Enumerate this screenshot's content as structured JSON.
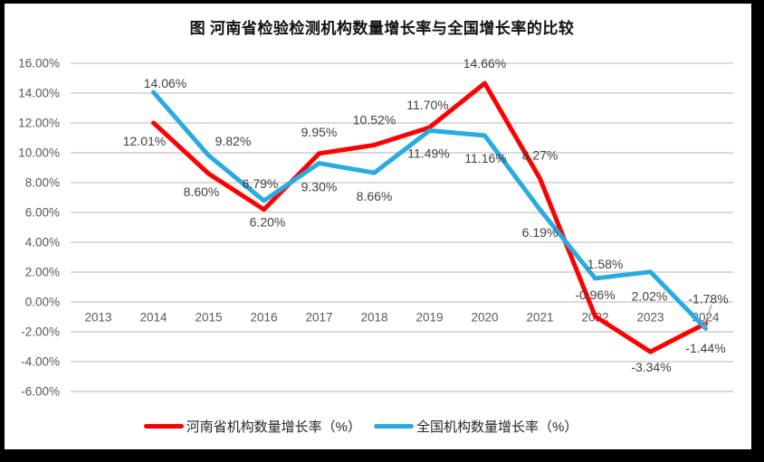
{
  "title": "图  河南省检验检测机构数量增长率与全国增长率的比较",
  "chart_data": {
    "type": "line",
    "title": "图  河南省检验检测机构数量增长率与全国增长率的比较",
    "categories": [
      "2013",
      "2014",
      "2015",
      "2016",
      "2017",
      "2018",
      "2019",
      "2020",
      "2021",
      "2022",
      "2023",
      "2024"
    ],
    "series": [
      {
        "name": "河南省机构数量增长率（%）",
        "color": "#FF0000",
        "values": [
          null,
          12.01,
          8.6,
          6.2,
          9.95,
          10.52,
          11.7,
          14.66,
          8.27,
          -0.96,
          -3.34,
          -1.44
        ],
        "labels": [
          "",
          "12.01%",
          "8.60%",
          "6.20%",
          "9.95%",
          "10.52%",
          "11.70%",
          "14.66%",
          "8.27%",
          "-0.96%",
          "-3.34%",
          "-1.44%"
        ]
      },
      {
        "name": "全国机构数量增长率（%）",
        "color": "#29ABE2",
        "values": [
          null,
          14.06,
          9.82,
          6.79,
          9.3,
          8.66,
          11.49,
          11.16,
          6.19,
          1.58,
          2.02,
          -1.78
        ],
        "labels": [
          "",
          "14.06%",
          "9.82%",
          "6.79%",
          "9.30%",
          "8.66%",
          "11.49%",
          "11.16%",
          "6.19%",
          "1.58%",
          "2.02%",
          "-1.78%"
        ]
      }
    ],
    "y_ticks": [
      "16.00%",
      "14.00%",
      "12.00%",
      "10.00%",
      "8.00%",
      "6.00%",
      "4.00%",
      "2.00%",
      "0.00%",
      "-2.00%",
      "-4.00%",
      "-6.00%"
    ],
    "ylim": [
      -6,
      16
    ],
    "y_step": 2,
    "xlabel": "",
    "ylabel": "",
    "grid": true,
    "legend_position": "bottom"
  }
}
